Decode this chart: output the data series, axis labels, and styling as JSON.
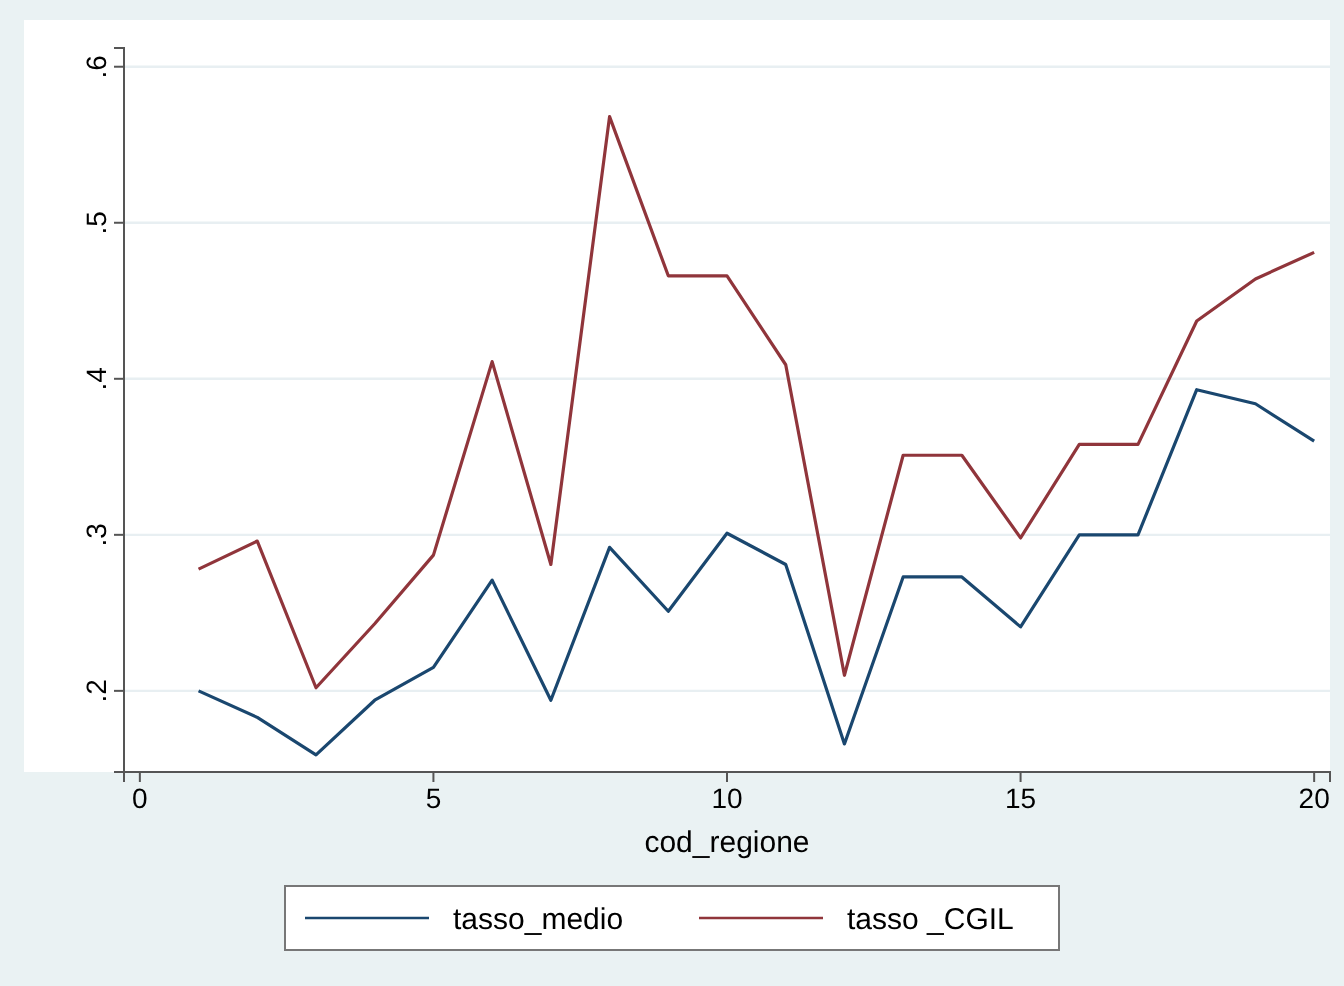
{
  "chart_data": {
    "type": "line",
    "xlabel": "cod_regione",
    "x": [
      1,
      2,
      3,
      4,
      5,
      6,
      7,
      8,
      9,
      10,
      11,
      12,
      13,
      14,
      15,
      16,
      17,
      18,
      19,
      20
    ],
    "series": [
      {
        "name": "tasso_medio",
        "color": "#1a476f",
        "values": [
          0.2,
          0.183,
          0.159,
          0.194,
          0.215,
          0.271,
          0.194,
          0.292,
          0.251,
          0.301,
          0.281,
          0.166,
          0.273,
          0.273,
          0.241,
          0.3,
          0.3,
          0.393,
          0.384,
          0.36
        ]
      },
      {
        "name": "tasso _CGIL",
        "color": "#90353b",
        "values": [
          0.278,
          0.296,
          0.202,
          0.243,
          0.287,
          0.411,
          0.281,
          0.568,
          0.466,
          0.466,
          0.409,
          0.21,
          0.351,
          0.351,
          0.298,
          0.358,
          0.358,
          0.437,
          0.464,
          0.481
        ]
      }
    ],
    "xlim": [
      -0.27,
      20.27
    ],
    "xticks": [
      0,
      5,
      10,
      15,
      20
    ],
    "ylim": [
      0.148,
      0.612
    ],
    "yticks": [
      {
        "value": 0.2,
        "label": ".2"
      },
      {
        "value": 0.3,
        "label": ".3"
      },
      {
        "value": 0.4,
        "label": ".4"
      },
      {
        "value": 0.5,
        "label": ".5"
      },
      {
        "value": 0.6,
        "label": ".6"
      }
    ],
    "grid": "y",
    "legend": "bottom",
    "line_style": "solid"
  }
}
